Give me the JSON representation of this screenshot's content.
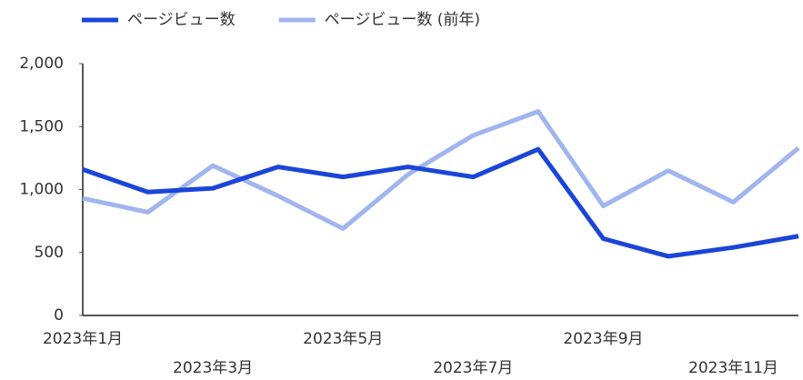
{
  "chart_data": {
    "type": "line",
    "categories": [
      "2023年1月",
      null,
      "2023年3月",
      null,
      "2023年5月",
      null,
      "2023年7月",
      null,
      "2023年9月",
      null,
      "2023年11月",
      null
    ],
    "series": [
      {
        "name": "ページビュー数",
        "color": "#1a45d8",
        "values": [
          1160,
          980,
          1010,
          1180,
          1100,
          1180,
          1100,
          1320,
          610,
          470,
          540,
          630
        ]
      },
      {
        "name": "ページビュー数 (前年)",
        "color": "#a1b5ee",
        "values": [
          930,
          820,
          1190,
          950,
          690,
          1120,
          1430,
          1620,
          870,
          1150,
          900,
          1330
        ]
      }
    ],
    "ylim": [
      0,
      2000
    ],
    "yticks": [
      0,
      500,
      {
        "value": 1000,
        "label": "1,000"
      },
      {
        "value": 1500,
        "label": "1,500"
      },
      {
        "value": 2000,
        "label": "2,000"
      }
    ],
    "grid": false,
    "legend": "top"
  }
}
